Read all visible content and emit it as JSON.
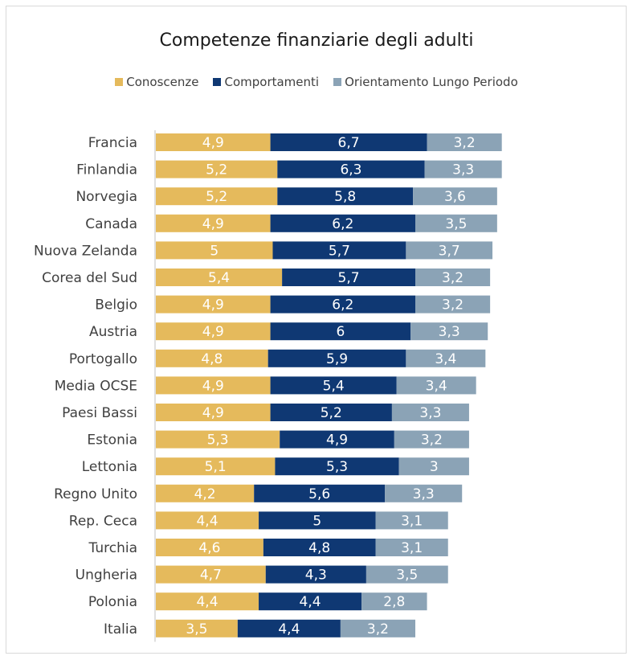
{
  "chart_data": {
    "type": "bar",
    "orientation": "horizontal",
    "stacked": true,
    "title": "Competenze finanziarie degli adulti",
    "legend_position": "top",
    "categories": [
      "Francia",
      "Finlandia",
      "Norvegia",
      "Canada",
      "Nuova Zelanda",
      "Corea del Sud",
      "Belgio",
      "Austria",
      "Portogallo",
      "Media OCSE",
      "Paesi Bassi",
      "Estonia",
      "Lettonia",
      "Regno Unito",
      "Rep. Ceca",
      "Turchia",
      "Ungheria",
      "Polonia",
      "Italia"
    ],
    "series": [
      {
        "name": "Conoscenze",
        "color": "#E5BA5C",
        "values": [
          4.9,
          5.2,
          5.2,
          4.9,
          5,
          5.4,
          4.9,
          4.9,
          4.8,
          4.9,
          4.9,
          5.3,
          5.1,
          4.2,
          4.4,
          4.6,
          4.7,
          4.4,
          3.5
        ],
        "labels": [
          "4,9",
          "5,2",
          "5,2",
          "4,9",
          "5",
          "5,4",
          "4,9",
          "4,9",
          "4,8",
          "4,9",
          "4,9",
          "5,3",
          "5,1",
          "4,2",
          "4,4",
          "4,6",
          "4,7",
          "4,4",
          "3,5"
        ]
      },
      {
        "name": "Comportamenti",
        "color": "#0F3873",
        "values": [
          6.7,
          6.3,
          5.8,
          6.2,
          5.7,
          5.7,
          6.2,
          6,
          5.9,
          5.4,
          5.2,
          4.9,
          5.3,
          5.6,
          5,
          4.8,
          4.3,
          4.4,
          4.4
        ],
        "labels": [
          "6,7",
          "6,3",
          "5,8",
          "6,2",
          "5,7",
          "5,7",
          "6,2",
          "6",
          "5,9",
          "5,4",
          "5,2",
          "4,9",
          "5,3",
          "5,6",
          "5",
          "4,8",
          "4,3",
          "4,4",
          "4,4"
        ]
      },
      {
        "name": "Orientamento Lungo Periodo",
        "color": "#8BA3B6",
        "values": [
          3.2,
          3.3,
          3.6,
          3.5,
          3.7,
          3.2,
          3.2,
          3.3,
          3.4,
          3.4,
          3.3,
          3.2,
          3,
          3.3,
          3.1,
          3.1,
          3.5,
          2.8,
          3.2
        ],
        "labels": [
          "3,2",
          "3,3",
          "3,6",
          "3,5",
          "3,7",
          "3,2",
          "3,2",
          "3,3",
          "3,4",
          "3,4",
          "3,3",
          "3,2",
          "3",
          "3,3",
          "3,1",
          "3,1",
          "3,5",
          "2,8",
          "3,2"
        ]
      }
    ]
  }
}
